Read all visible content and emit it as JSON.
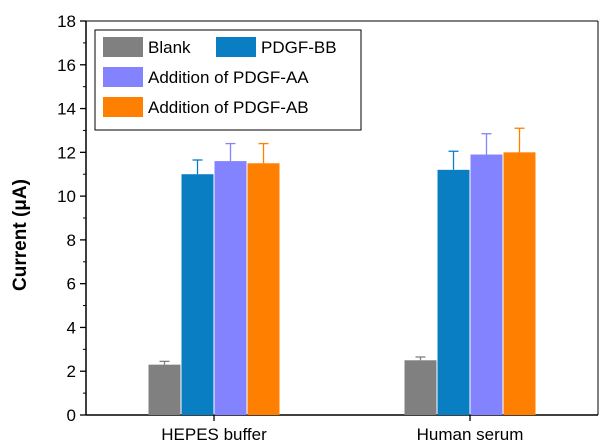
{
  "chart_data": {
    "type": "bar",
    "categories": [
      "HEPES buffer",
      "Human serum"
    ],
    "series": [
      {
        "name": "Blank",
        "color": "#808080",
        "values": [
          2.3,
          2.5
        ],
        "errors": [
          0.15,
          0.15
        ]
      },
      {
        "name": "PDGF-BB",
        "color": "#0a7ec2",
        "values": [
          11.0,
          11.2
        ],
        "errors": [
          0.65,
          0.85
        ]
      },
      {
        "name": "Addition of PDGF-AA",
        "color": "#8383ff",
        "values": [
          11.6,
          11.9
        ],
        "errors": [
          0.8,
          0.95
        ]
      },
      {
        "name": "Addition of PDGF-AB",
        "color": "#ff8000",
        "values": [
          11.5,
          12.0
        ],
        "errors": [
          0.9,
          1.1
        ]
      }
    ],
    "title": "",
    "xlabel": "",
    "ylabel": "Current (μA)",
    "ylim": [
      0,
      18
    ],
    "yticks": [
      "0",
      "2",
      "4",
      "6",
      "8",
      "10",
      "12",
      "14",
      "16",
      "18"
    ],
    "legend_position": "top-left",
    "grid": false
  }
}
